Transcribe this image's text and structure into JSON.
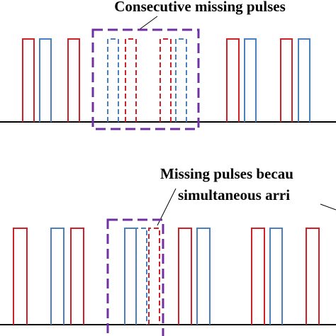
{
  "top": {
    "label": "Consecutive missing pulses"
  },
  "bottom": {
    "label_line1": "Missing pulses becau",
    "label_line2": "simultaneous arri"
  }
}
